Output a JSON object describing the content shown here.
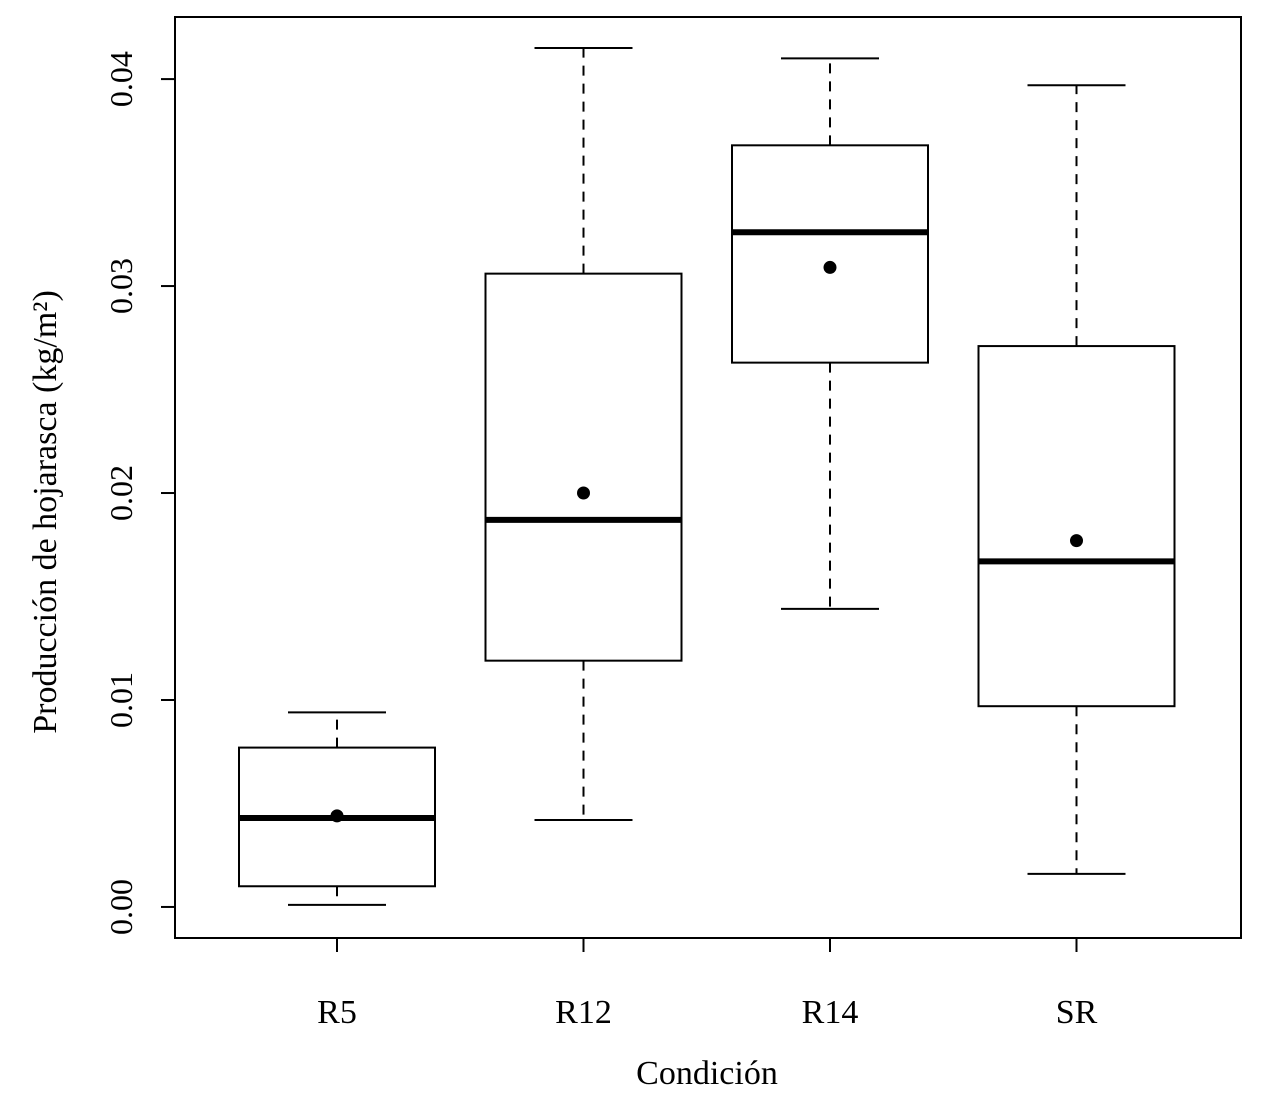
{
  "chart_data": {
    "type": "boxplot",
    "title": "",
    "xlabel": "Condición",
    "ylabel": "Producción de hojarasca (kg/m²)",
    "ylim": [
      -0.0015,
      0.043
    ],
    "yticks": [
      0.0,
      0.01,
      0.02,
      0.03,
      0.04
    ],
    "ytick_labels": [
      "0.00",
      "0.01",
      "0.02",
      "0.03",
      "0.04"
    ],
    "categories": [
      "R5",
      "R12",
      "R14",
      "SR"
    ],
    "series": [
      {
        "name": "R5",
        "whisker_low": 0.0001,
        "q1": 0.001,
        "median": 0.0043,
        "q3": 0.0077,
        "whisker_high": 0.0094,
        "mean": 0.0044
      },
      {
        "name": "R12",
        "whisker_low": 0.0042,
        "q1": 0.0119,
        "median": 0.0187,
        "q3": 0.0306,
        "whisker_high": 0.0415,
        "mean": 0.02
      },
      {
        "name": "R14",
        "whisker_low": 0.0144,
        "q1": 0.0263,
        "median": 0.0326,
        "q3": 0.0368,
        "whisker_high": 0.041,
        "mean": 0.0309
      },
      {
        "name": "SR",
        "whisker_low": 0.0016,
        "q1": 0.0097,
        "median": 0.0167,
        "q3": 0.0271,
        "whisker_high": 0.0397,
        "mean": 0.0177
      }
    ],
    "grid": false,
    "legend": "none"
  }
}
